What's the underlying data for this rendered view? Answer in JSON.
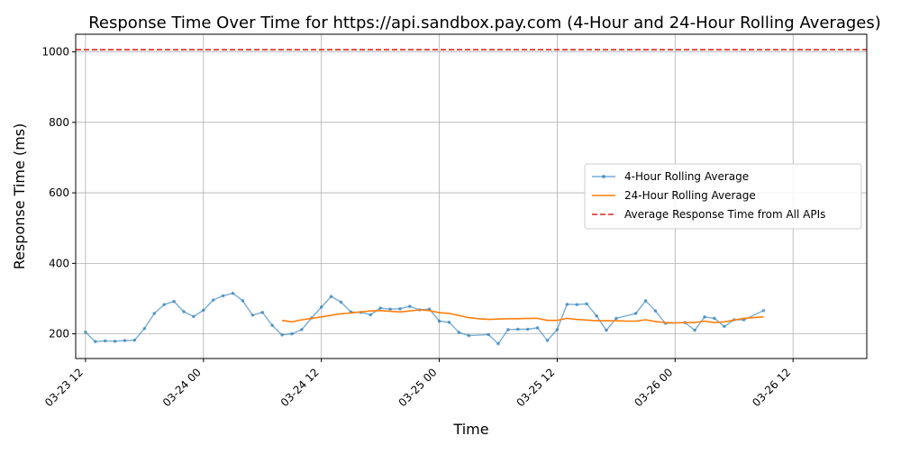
{
  "chart_data": {
    "type": "line",
    "title": "Response Time Over Time for https://api.sandbox.pay.com (4-Hour and 24-Hour Rolling Averages)",
    "xlabel": "Time",
    "ylabel": "Response Time (ms)",
    "ylim": [
      130,
      1050
    ],
    "xlim_hours": [
      -1,
      79.5
    ],
    "grid": true,
    "legend_position": "center-right",
    "x_ticks": [
      {
        "hour": 0,
        "label": "03-23 12"
      },
      {
        "hour": 12,
        "label": "03-24 00"
      },
      {
        "hour": 24,
        "label": "03-24 12"
      },
      {
        "hour": 36,
        "label": "03-25 00"
      },
      {
        "hour": 48,
        "label": "03-25 12"
      },
      {
        "hour": 60,
        "label": "03-26 00"
      },
      {
        "hour": 72,
        "label": "03-26 12"
      }
    ],
    "y_ticks": [
      {
        "value": 200,
        "label": "200"
      },
      {
        "value": 400,
        "label": "400"
      },
      {
        "value": 600,
        "label": "600"
      },
      {
        "value": 800,
        "label": "800"
      },
      {
        "value": 1000,
        "label": "1000"
      }
    ],
    "series": [
      {
        "name": "4-Hour Rolling Average",
        "color": "#1f77b4",
        "style": "line-with-markers",
        "points": [
          [
            0,
            205
          ],
          [
            1,
            178
          ],
          [
            2,
            180
          ],
          [
            3,
            179
          ],
          [
            4,
            181
          ],
          [
            5,
            182
          ],
          [
            6,
            215
          ],
          [
            7,
            258
          ],
          [
            8,
            283
          ],
          [
            9,
            292
          ],
          [
            10,
            263
          ],
          [
            11,
            249
          ],
          [
            12,
            267
          ],
          [
            13,
            296
          ],
          [
            14,
            308
          ],
          [
            15,
            315
          ],
          [
            16,
            294
          ],
          [
            17,
            253
          ],
          [
            18,
            261
          ],
          [
            19,
            224
          ],
          [
            20,
            197
          ],
          [
            21,
            200
          ],
          [
            22,
            212
          ],
          [
            23,
            245
          ],
          [
            24,
            276
          ],
          [
            25,
            306
          ],
          [
            26,
            290
          ],
          [
            27,
            262
          ],
          [
            28,
            261
          ],
          [
            29,
            254
          ],
          [
            30,
            273
          ],
          [
            31,
            270
          ],
          [
            32,
            271
          ],
          [
            33,
            278
          ],
          [
            34,
            268
          ],
          [
            35,
            270
          ],
          [
            36,
            236
          ],
          [
            37,
            233
          ],
          [
            38,
            204
          ],
          [
            39,
            195
          ],
          [
            41,
            198
          ],
          [
            42,
            172
          ],
          [
            43,
            212
          ],
          [
            44,
            213
          ],
          [
            45,
            213
          ],
          [
            46,
            217
          ],
          [
            47,
            181
          ],
          [
            48,
            212
          ],
          [
            49,
            284
          ],
          [
            50,
            283
          ],
          [
            51,
            285
          ],
          [
            52,
            251
          ],
          [
            53,
            210
          ],
          [
            54,
            244
          ],
          [
            56,
            258
          ],
          [
            57,
            294
          ],
          [
            58,
            265
          ],
          [
            59,
            230
          ],
          [
            61,
            232
          ],
          [
            62,
            210
          ],
          [
            63,
            248
          ],
          [
            64,
            244
          ],
          [
            65,
            221
          ],
          [
            66,
            240
          ],
          [
            67,
            240
          ],
          [
            69,
            266
          ]
        ]
      },
      {
        "name": "24-Hour Rolling Average",
        "color": "#ff7f0e",
        "style": "line",
        "points": [
          [
            20,
            238
          ],
          [
            21,
            234
          ],
          [
            22,
            240
          ],
          [
            23,
            244
          ],
          [
            24,
            248
          ],
          [
            25,
            253
          ],
          [
            26,
            257
          ],
          [
            27,
            259
          ],
          [
            28,
            262
          ],
          [
            29,
            265
          ],
          [
            30,
            266
          ],
          [
            31,
            264
          ],
          [
            32,
            262
          ],
          [
            33,
            265
          ],
          [
            34,
            268
          ],
          [
            35,
            266
          ],
          [
            36,
            260
          ],
          [
            37,
            258
          ],
          [
            38,
            252
          ],
          [
            39,
            246
          ],
          [
            40,
            243
          ],
          [
            41,
            241
          ],
          [
            42,
            242
          ],
          [
            43,
            243
          ],
          [
            44,
            243
          ],
          [
            45,
            244
          ],
          [
            46,
            244
          ],
          [
            47,
            238
          ],
          [
            48,
            238
          ],
          [
            49,
            244
          ],
          [
            50,
            241
          ],
          [
            51,
            239
          ],
          [
            52,
            237
          ],
          [
            53,
            237
          ],
          [
            54,
            237
          ],
          [
            55,
            236
          ],
          [
            56,
            236
          ],
          [
            57,
            240
          ],
          [
            58,
            235
          ],
          [
            59,
            232
          ],
          [
            60,
            231
          ],
          [
            61,
            232
          ],
          [
            62,
            232
          ],
          [
            63,
            236
          ],
          [
            64,
            232
          ],
          [
            65,
            234
          ],
          [
            66,
            239
          ],
          [
            67,
            244
          ],
          [
            68,
            246
          ],
          [
            69,
            248
          ]
        ]
      },
      {
        "name": "Average Response Time from All APIs",
        "color": "#d62728",
        "style": "dashed-horizontal",
        "value": 1006
      }
    ]
  }
}
